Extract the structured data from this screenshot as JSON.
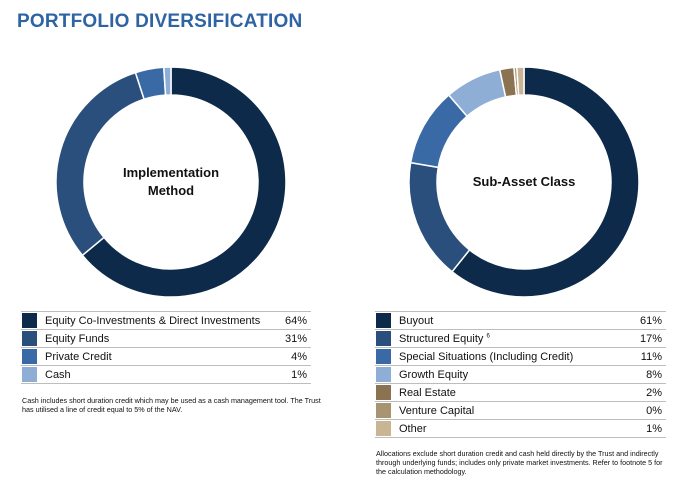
{
  "title": "PORTFOLIO DIVERSIFICATION",
  "colors": {
    "title": "#2e63a4",
    "navy": "#0d2a4a",
    "dark_blue": "#2b4f7c",
    "mid_blue": "#3a6aa6",
    "light_blue": "#8eaed6",
    "brown": "#8b7352",
    "tan": "#a99472",
    "beige": "#c9b594"
  },
  "chart_data": [
    {
      "type": "pie",
      "center_label": "Implementation\nMethod",
      "legend": "below",
      "series": [
        {
          "name": "Equity Co-Investments & Direct Investments",
          "value": 64,
          "label": "64%",
          "color": "#0d2a4a"
        },
        {
          "name": "Equity Funds",
          "value": 31,
          "label": "31%",
          "color": "#2b4f7c"
        },
        {
          "name": "Private Credit",
          "value": 4,
          "label": "4%",
          "color": "#3a6aa6"
        },
        {
          "name": "Cash",
          "value": 1,
          "label": "1%",
          "color": "#8eaed6"
        }
      ],
      "footnote": "Cash includes short duration credit which may be used as a cash management tool. The Trust has utilised a line of credit equal to 5% of the NAV."
    },
    {
      "type": "pie",
      "center_label": "Sub-Asset Class",
      "legend": "below",
      "series": [
        {
          "name": "Buyout",
          "value": 61,
          "label": "61%",
          "color": "#0d2a4a"
        },
        {
          "name": "Structured Equity",
          "superscript": "6",
          "value": 17,
          "label": "17%",
          "color": "#2b4f7c"
        },
        {
          "name": "Special Situations (Including Credit)",
          "value": 11,
          "label": "11%",
          "color": "#3a6aa6"
        },
        {
          "name": "Growth Equity",
          "value": 8,
          "label": "8%",
          "color": "#8eaed6"
        },
        {
          "name": "Real Estate",
          "value": 2,
          "label": "2%",
          "color": "#8b7352"
        },
        {
          "name": "Venture Capital",
          "value": 0.4,
          "label": "0%",
          "color": "#a99472"
        },
        {
          "name": "Other",
          "value": 1,
          "label": "1%",
          "color": "#c9b594"
        }
      ],
      "footnote": "Allocations exclude short duration credit and cash held directly by the Trust and indirectly through underlying funds; includes only private market investments. Refer to footnote 5 for the calculation methodology."
    }
  ]
}
